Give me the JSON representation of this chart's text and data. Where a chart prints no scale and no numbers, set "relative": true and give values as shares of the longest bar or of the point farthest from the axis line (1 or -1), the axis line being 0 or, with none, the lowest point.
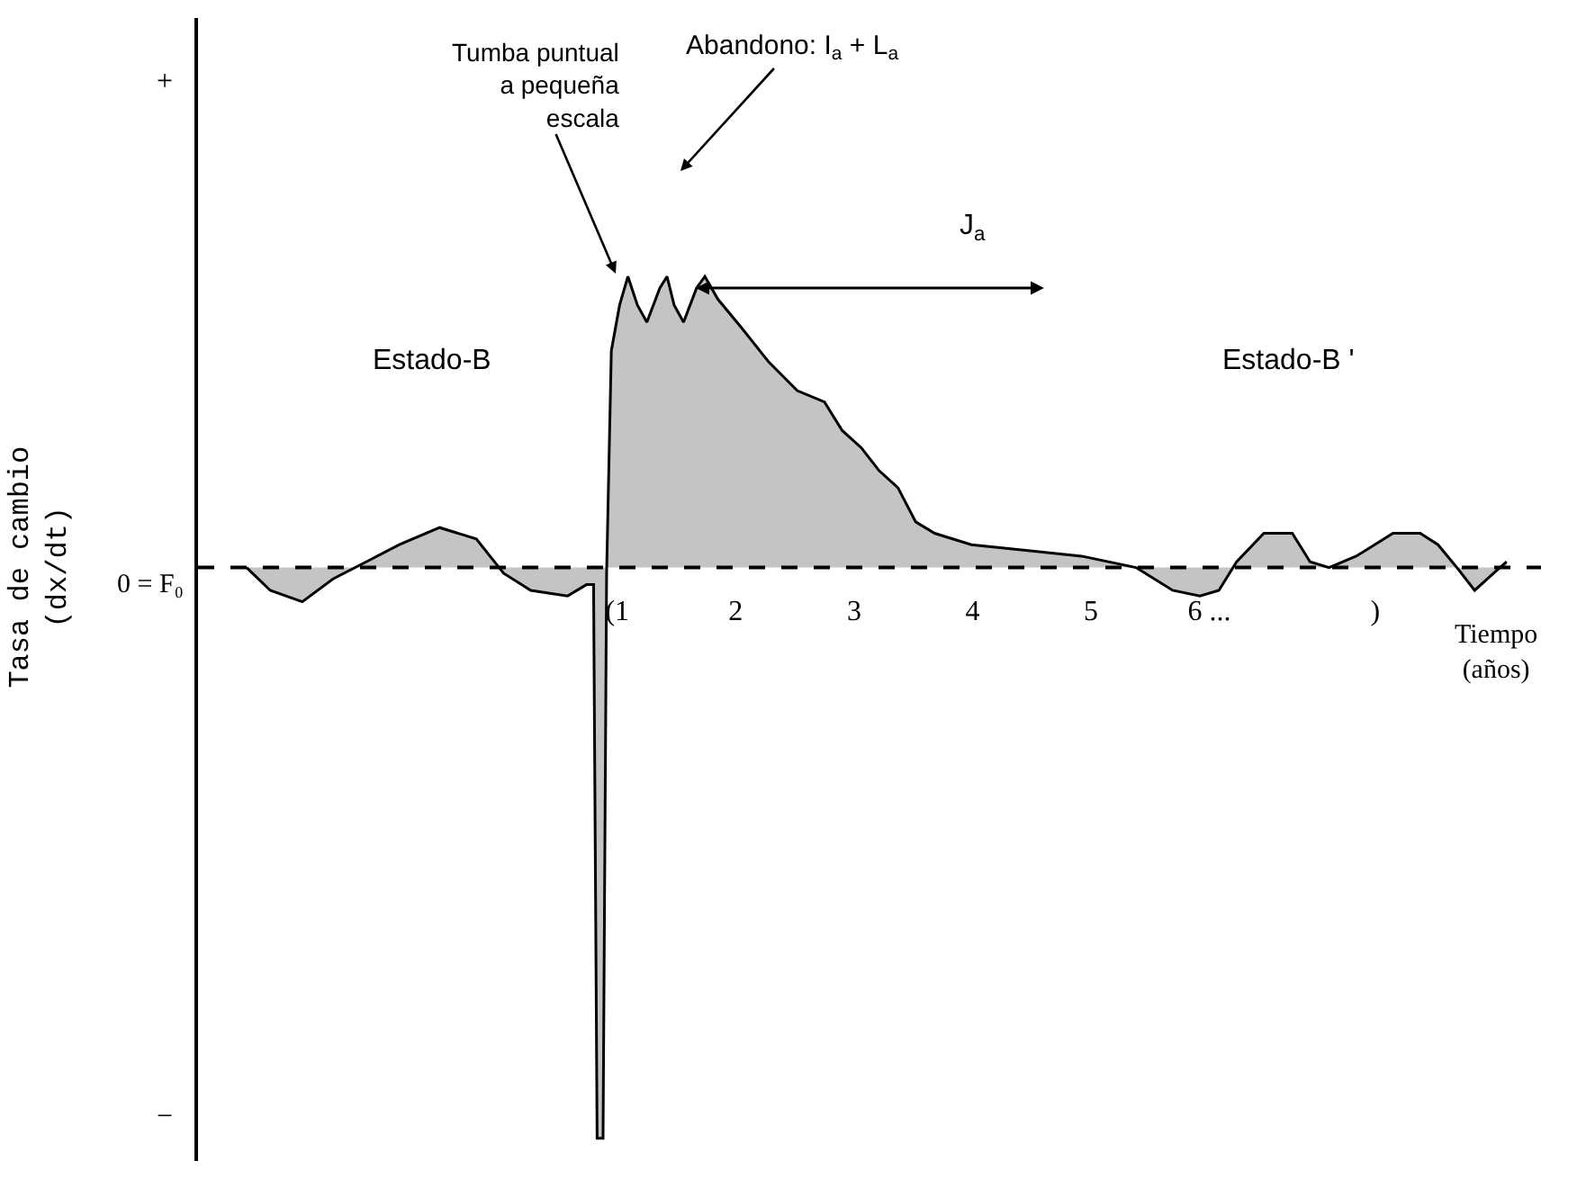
{
  "chart_data": {
    "type": "area",
    "relative": true,
    "color": "#c4c4c4",
    "xlabel": "Tiempo\n(años)",
    "ylabel": "Tasa de cambio\n(dx/dt)",
    "x": [
      -2.13,
      -1.93,
      -1.66,
      -1.4,
      -1.12,
      -0.84,
      -0.5,
      -0.19,
      0.04,
      0.27,
      0.58,
      0.74,
      0.8,
      0.83,
      0.88,
      0.91,
      0.95,
      1.02,
      1.09,
      1.17,
      1.25,
      1.36,
      1.42,
      1.48,
      1.56,
      1.67,
      1.74,
      1.85,
      2.05,
      2.28,
      2.52,
      2.75,
      2.9,
      3.06,
      3.21,
      3.37,
      3.52,
      3.68,
      3.99,
      4.45,
      4.92,
      5.38,
      5.69,
      5.92,
      6.08,
      6.23,
      6.46,
      6.7,
      6.85,
      7.01,
      7.24,
      7.55,
      7.78,
      7.93,
      8.09,
      8.24,
      8.4,
      8.51
    ],
    "values": [
      0,
      -0.04,
      -0.06,
      -0.02,
      0.01,
      0.04,
      0.07,
      0.05,
      -0.01,
      -0.04,
      -0.05,
      -0.03,
      -0.03,
      -1,
      -1,
      -0.01,
      0.38,
      0.46,
      0.51,
      0.46,
      0.43,
      0.49,
      0.51,
      0.46,
      0.43,
      0.49,
      0.51,
      0.47,
      0.42,
      0.36,
      0.31,
      0.29,
      0.24,
      0.21,
      0.17,
      0.14,
      0.08,
      0.06,
      0.04,
      0.03,
      0.02,
      0,
      -0.04,
      -0.05,
      -0.04,
      0.01,
      0.06,
      0.06,
      0.01,
      0,
      0.02,
      0.06,
      0.06,
      0.04,
      0,
      -0.04,
      -0.01,
      0.01
    ],
    "xlim": [
      -2.54,
      8.8
    ],
    "xticks": [
      {
        "value": 1,
        "label": "(1"
      },
      2,
      3,
      4,
      5,
      {
        "value": 6,
        "label": "6 ..."
      },
      {
        "value": 7.4,
        "label": ")"
      }
    ],
    "ref_lines": [
      {
        "axis": "y",
        "value": 0,
        "line_style": "dashed",
        "color": "#000000"
      }
    ],
    "annotations": [
      "Tumba puntual\na pequeña\nescala",
      "Abandono: I$_{a}$ + L$_{a}$",
      "J$_{a}$",
      "Estado-B",
      "Estado-B '",
      "+",
      "0 = F₀",
      "−"
    ]
  }
}
